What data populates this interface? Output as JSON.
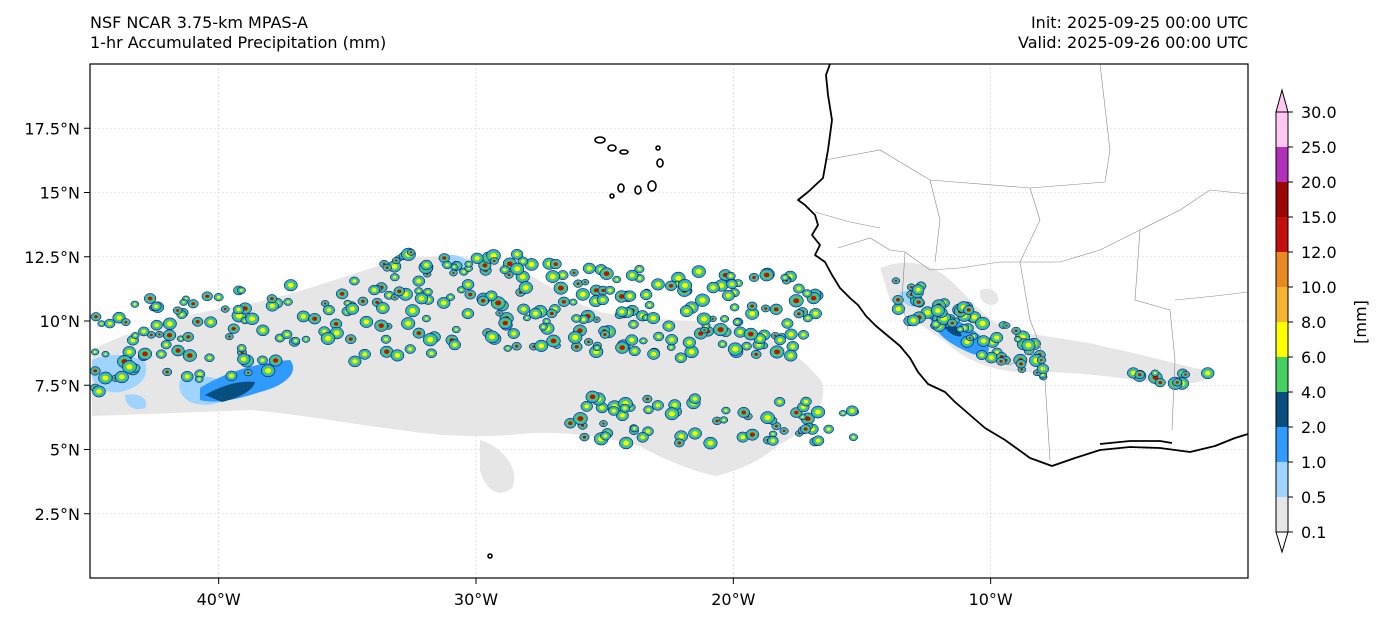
{
  "header": {
    "model": "NSF NCAR 3.75-km MPAS-A",
    "field": "1-hr Accumulated Precipitation (mm)",
    "init": "Init: 2025-09-25 00:00 UTC",
    "valid": "Valid: 2025-09-26 00:00 UTC"
  },
  "map": {
    "lon_range": [
      -45,
      0
    ],
    "lat_range": [
      0,
      20
    ],
    "lon_ticks": [
      {
        "value": -40,
        "label": "40°W"
      },
      {
        "value": -30,
        "label": "30°W"
      },
      {
        "value": -20,
        "label": "20°W"
      },
      {
        "value": -10,
        "label": "10°W"
      }
    ],
    "lat_ticks": [
      {
        "value": 2.5,
        "label": "2.5°N"
      },
      {
        "value": 5,
        "label": "5°N"
      },
      {
        "value": 7.5,
        "label": "7.5°N"
      },
      {
        "value": 10,
        "label": "10°N"
      },
      {
        "value": 12.5,
        "label": "12.5°N"
      },
      {
        "value": 15,
        "label": "15°N"
      },
      {
        "value": 17.5,
        "label": "17.5°N"
      }
    ],
    "gridlines": true
  },
  "colorbar": {
    "label": "[mm]",
    "levels": [
      "0.1",
      "0.5",
      "1.0",
      "2.0",
      "4.0",
      "6.0",
      "8.0",
      "10.0",
      "12.0",
      "15.0",
      "20.0",
      "25.0",
      "30.0"
    ],
    "colors": [
      "#e6e6e6",
      "#9fd4ff",
      "#2f9bff",
      "#064f7e",
      "#44d162",
      "#ffff00",
      "#f7b433",
      "#e88922",
      "#c50f0f",
      "#9a0505",
      "#b030b8",
      "#ffc8f4"
    ],
    "extend": "both"
  }
}
